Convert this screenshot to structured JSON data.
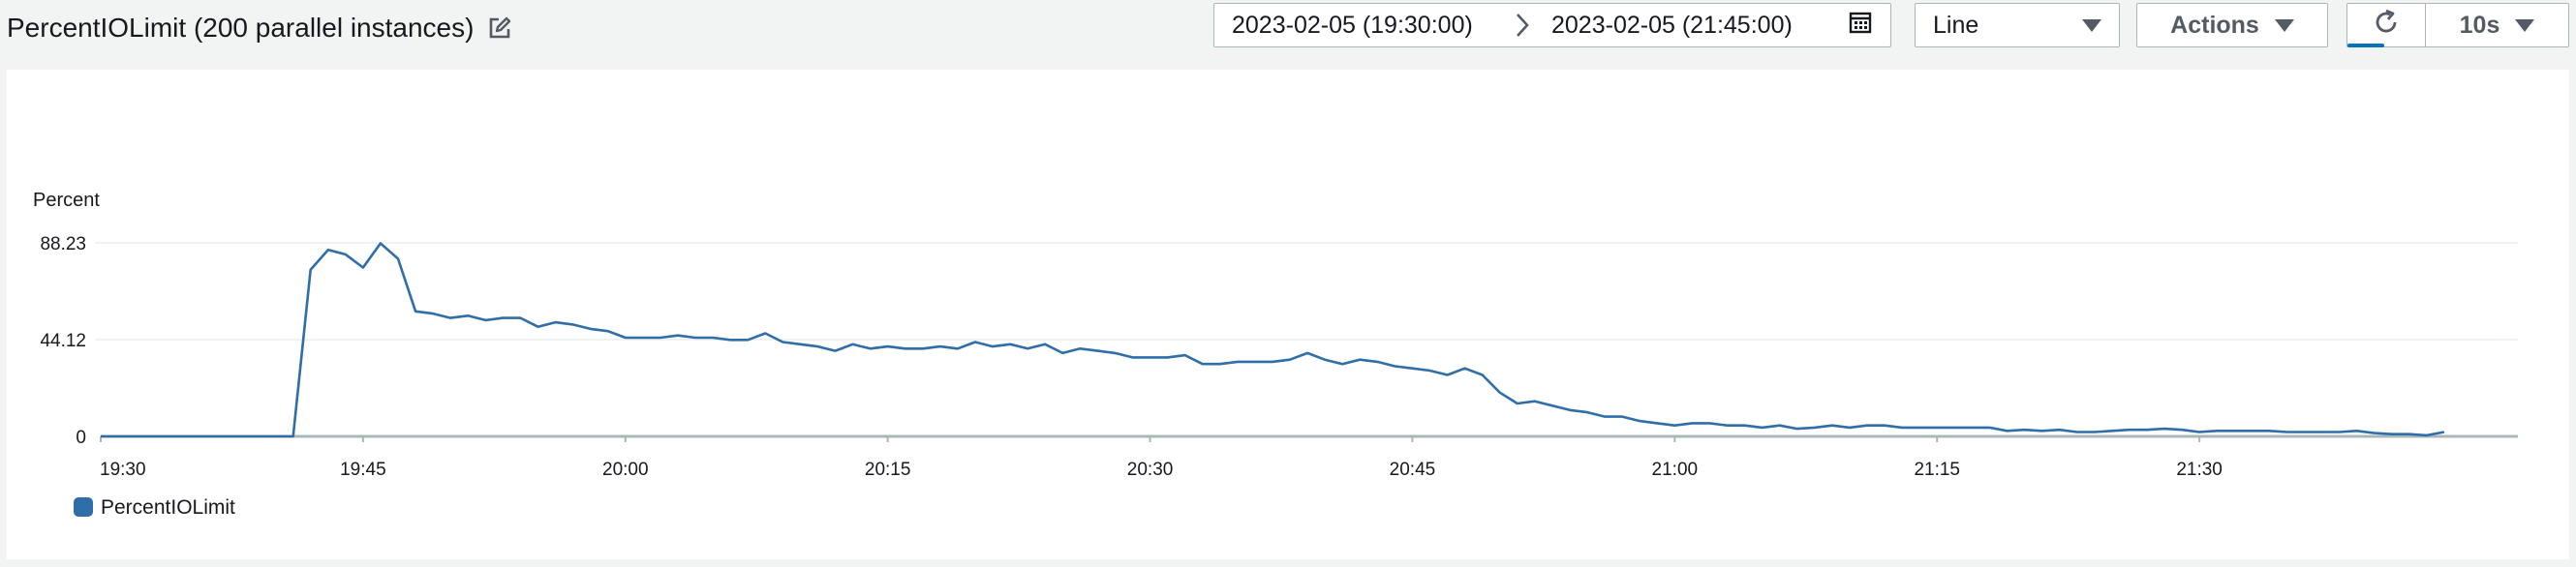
{
  "header": {
    "title": "PercentIOLimit (200 parallel instances)"
  },
  "toolbar": {
    "date_start": "2023-02-05 (19:30:00)",
    "date_end": "2023-02-05 (21:45:00)",
    "chart_type": "Line",
    "actions_label": "Actions",
    "interval_label": "10s"
  },
  "icons": {
    "edit": "edit-icon",
    "date_separator": "chevron-right-icon",
    "calendar": "calendar-icon",
    "chart_type_dropdown": "caret-down-icon",
    "refresh": "refresh-icon"
  },
  "colors": {
    "series_line": "#2f6ea9",
    "accent": "#0073bb",
    "axis_line": "#aab7b8",
    "gridline": "#eaeded"
  },
  "chart_data": {
    "type": "line",
    "ylabel": "Percent",
    "yticks": [
      0,
      44.12,
      88.23
    ],
    "ylim": [
      0,
      88.23
    ],
    "xticks": [
      "19:30",
      "19:45",
      "20:00",
      "20:15",
      "20:30",
      "20:45",
      "21:00",
      "21:15",
      "21:30"
    ],
    "grid": true,
    "legend_position": "bottom-left",
    "series": [
      {
        "name": "PercentIOLimit",
        "color": "#2f6ea9",
        "points": [
          [
            "19:30",
            0
          ],
          [
            "19:41",
            0
          ],
          [
            "19:42",
            76
          ],
          [
            "19:43",
            85
          ],
          [
            "19:44",
            83
          ],
          [
            "19:45",
            77
          ],
          [
            "19:46",
            88
          ],
          [
            "19:47",
            81
          ],
          [
            "19:48",
            57
          ],
          [
            "19:49",
            56
          ],
          [
            "19:50",
            54
          ],
          [
            "19:51",
            55
          ],
          [
            "19:52",
            53
          ],
          [
            "19:53",
            54
          ],
          [
            "19:54",
            54
          ],
          [
            "19:55",
            50
          ],
          [
            "19:56",
            52
          ],
          [
            "19:57",
            51
          ],
          [
            "19:58",
            49
          ],
          [
            "19:59",
            48
          ],
          [
            "20:00",
            45
          ],
          [
            "20:01",
            45
          ],
          [
            "20:02",
            45
          ],
          [
            "20:03",
            46
          ],
          [
            "20:04",
            45
          ],
          [
            "20:05",
            45
          ],
          [
            "20:06",
            44
          ],
          [
            "20:07",
            44
          ],
          [
            "20:08",
            47
          ],
          [
            "20:09",
            43
          ],
          [
            "20:10",
            42
          ],
          [
            "20:11",
            41
          ],
          [
            "20:12",
            39
          ],
          [
            "20:13",
            42
          ],
          [
            "20:14",
            40
          ],
          [
            "20:15",
            41
          ],
          [
            "20:16",
            40
          ],
          [
            "20:17",
            40
          ],
          [
            "20:18",
            41
          ],
          [
            "20:19",
            40
          ],
          [
            "20:20",
            43
          ],
          [
            "20:21",
            41
          ],
          [
            "20:22",
            42
          ],
          [
            "20:23",
            40
          ],
          [
            "20:24",
            42
          ],
          [
            "20:25",
            38
          ],
          [
            "20:26",
            40
          ],
          [
            "20:27",
            39
          ],
          [
            "20:28",
            38
          ],
          [
            "20:29",
            36
          ],
          [
            "20:30",
            36
          ],
          [
            "20:31",
            36
          ],
          [
            "20:32",
            37
          ],
          [
            "20:33",
            33
          ],
          [
            "20:34",
            33
          ],
          [
            "20:35",
            34
          ],
          [
            "20:36",
            34
          ],
          [
            "20:37",
            34
          ],
          [
            "20:38",
            35
          ],
          [
            "20:39",
            38
          ],
          [
            "20:40",
            35
          ],
          [
            "20:41",
            33
          ],
          [
            "20:42",
            35
          ],
          [
            "20:43",
            34
          ],
          [
            "20:44",
            32
          ],
          [
            "20:45",
            31
          ],
          [
            "20:46",
            30
          ],
          [
            "20:47",
            28
          ],
          [
            "20:48",
            31
          ],
          [
            "20:49",
            28
          ],
          [
            "20:50",
            20
          ],
          [
            "20:51",
            15
          ],
          [
            "20:52",
            16
          ],
          [
            "20:53",
            14
          ],
          [
            "20:54",
            12
          ],
          [
            "20:55",
            11
          ],
          [
            "20:56",
            9
          ],
          [
            "20:57",
            9
          ],
          [
            "20:58",
            7
          ],
          [
            "20:59",
            6
          ],
          [
            "21:00",
            5
          ],
          [
            "21:01",
            6
          ],
          [
            "21:02",
            6
          ],
          [
            "21:03",
            5
          ],
          [
            "21:04",
            5
          ],
          [
            "21:05",
            4
          ],
          [
            "21:06",
            5
          ],
          [
            "21:07",
            3.5
          ],
          [
            "21:08",
            4
          ],
          [
            "21:09",
            5
          ],
          [
            "21:10",
            4
          ],
          [
            "21:11",
            5
          ],
          [
            "21:12",
            5
          ],
          [
            "21:13",
            4
          ],
          [
            "21:14",
            4
          ],
          [
            "21:15",
            4
          ],
          [
            "21:16",
            4
          ],
          [
            "21:17",
            4
          ],
          [
            "21:18",
            4
          ],
          [
            "21:19",
            2.5
          ],
          [
            "21:20",
            3
          ],
          [
            "21:21",
            2.5
          ],
          [
            "21:22",
            3
          ],
          [
            "21:23",
            2
          ],
          [
            "21:24",
            2
          ],
          [
            "21:25",
            2.5
          ],
          [
            "21:26",
            3
          ],
          [
            "21:27",
            3
          ],
          [
            "21:28",
            3.5
          ],
          [
            "21:29",
            3
          ],
          [
            "21:30",
            2
          ],
          [
            "21:31",
            2.5
          ],
          [
            "21:32",
            2.5
          ],
          [
            "21:33",
            2.5
          ],
          [
            "21:34",
            2.5
          ],
          [
            "21:35",
            2
          ],
          [
            "21:36",
            2
          ],
          [
            "21:37",
            2
          ],
          [
            "21:38",
            2
          ],
          [
            "21:39",
            2.5
          ],
          [
            "21:40",
            1.5
          ],
          [
            "21:41",
            1
          ],
          [
            "21:42",
            1
          ],
          [
            "21:43",
            0.5
          ],
          [
            "21:44",
            2
          ]
        ]
      }
    ]
  }
}
